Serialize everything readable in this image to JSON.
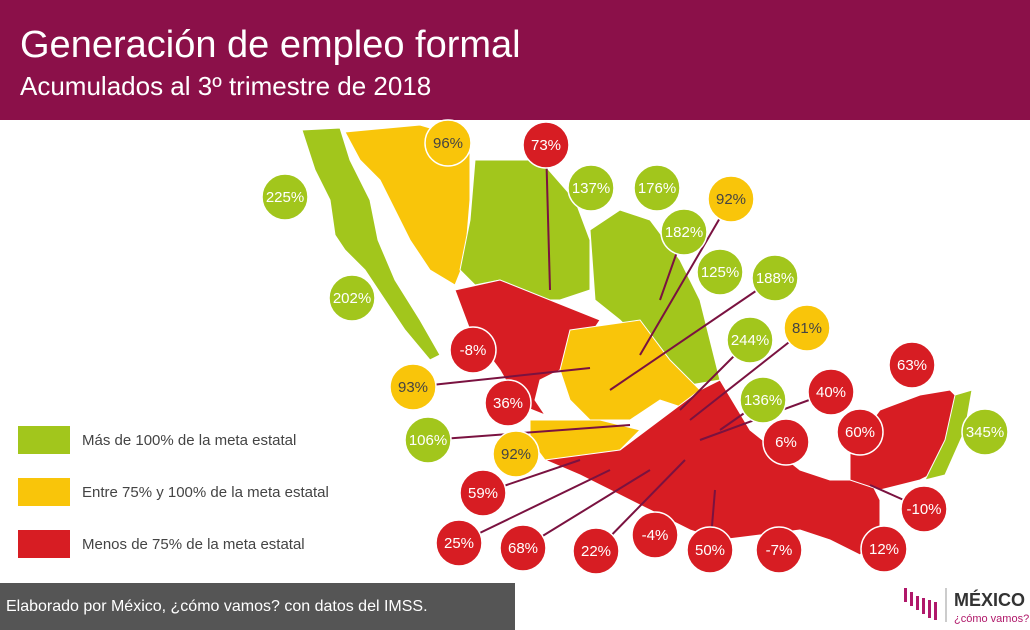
{
  "header": {
    "title": "Generación de empleo formal",
    "subtitle": "Acumulados al 3º trimestre de 2018"
  },
  "legend": [
    {
      "text": "Más de 100% de la meta estatal",
      "color": "#a2c61c"
    },
    {
      "text": "Entre 75% y 100% de la meta estatal",
      "color": "#f9c50a"
    },
    {
      "text": "Menos de 75% de la meta estatal",
      "color": "#d71d23"
    }
  ],
  "labels": [
    {
      "text": "225%",
      "color": "#a2c61c"
    },
    {
      "text": "96%",
      "color": "#f9c50a"
    },
    {
      "text": "73%",
      "color": "#d71d23"
    },
    {
      "text": "137%",
      "color": "#a2c61c"
    },
    {
      "text": "176%",
      "color": "#a2c61c"
    },
    {
      "text": "92%",
      "color": "#f9c50a"
    },
    {
      "text": "182%",
      "color": "#a2c61c"
    },
    {
      "text": "125%",
      "color": "#a2c61c"
    },
    {
      "text": "188%",
      "color": "#a2c61c"
    },
    {
      "text": "202%",
      "color": "#a2c61c"
    },
    {
      "text": "81%",
      "color": "#f9c50a"
    },
    {
      "text": "244%",
      "color": "#a2c61c"
    },
    {
      "text": "-8%",
      "color": "#d71d23"
    },
    {
      "text": "93%",
      "color": "#f9c50a"
    },
    {
      "text": "36%",
      "color": "#d71d23"
    },
    {
      "text": "136%",
      "color": "#a2c61c"
    },
    {
      "text": "40%",
      "color": "#d71d23"
    },
    {
      "text": "63%",
      "color": "#d71d23"
    },
    {
      "text": "106%",
      "color": "#a2c61c"
    },
    {
      "text": "92%",
      "color": "#f9c50a"
    },
    {
      "text": "6%",
      "color": "#d71d23"
    },
    {
      "text": "60%",
      "color": "#d71d23"
    },
    {
      "text": "345%",
      "color": "#a2c61c"
    },
    {
      "text": "59%",
      "color": "#d71d23"
    },
    {
      "text": "-10%",
      "color": "#d71d23"
    },
    {
      "text": "25%",
      "color": "#d71d23"
    },
    {
      "text": "68%",
      "color": "#d71d23"
    },
    {
      "text": "22%",
      "color": "#d71d23"
    },
    {
      "text": "-4%",
      "color": "#d71d23"
    },
    {
      "text": "50%",
      "color": "#d71d23"
    },
    {
      "text": "-7%",
      "color": "#d71d23"
    },
    {
      "text": "12%",
      "color": "#d71d23"
    }
  ],
  "footer": {
    "text": "Elaborado por México, ¿cómo vamos? con datos del IMSS."
  },
  "logo": {
    "name": "MÉXICO",
    "tagline": "¿cómo vamos?"
  }
}
